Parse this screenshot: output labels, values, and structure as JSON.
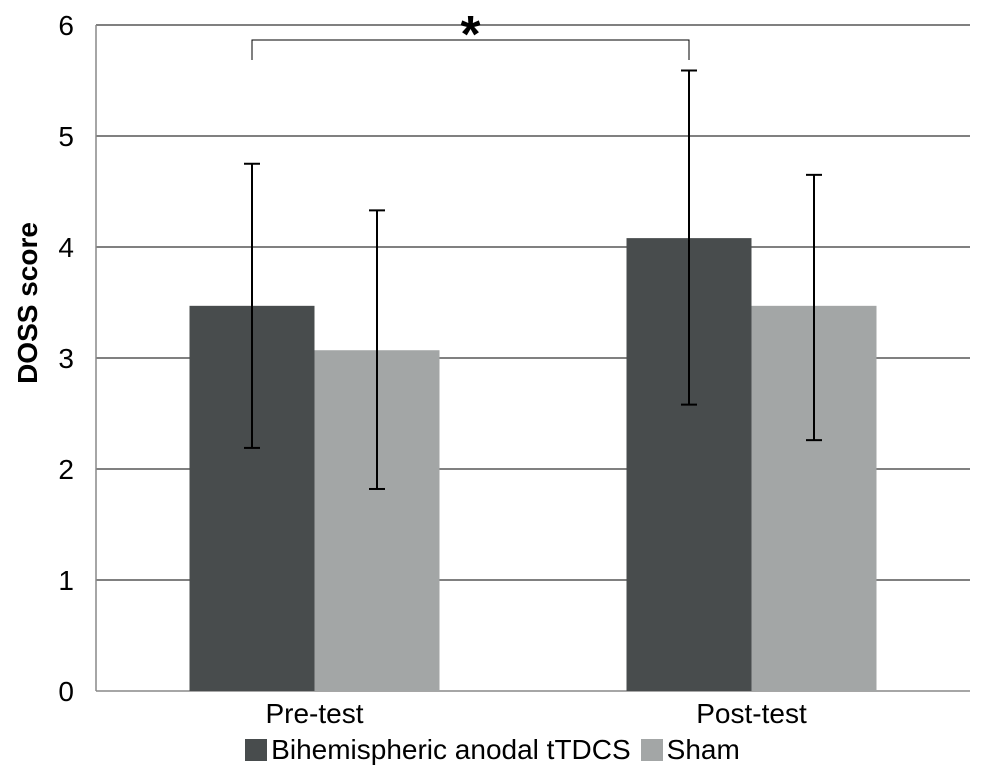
{
  "chart_data": {
    "type": "bar",
    "categories": [
      "Pre-test",
      "Post-test"
    ],
    "series": [
      {
        "name": "Bihemispheric anodal tTDCS",
        "values": [
          3.47,
          4.08
        ],
        "err_low": [
          2.19,
          2.58
        ],
        "err_high": [
          4.75,
          5.59
        ],
        "color": "#484c4d"
      },
      {
        "name": "Sham",
        "values": [
          3.07,
          3.47
        ],
        "err_low": [
          1.82,
          2.26
        ],
        "err_high": [
          4.33,
          4.65
        ],
        "color": "#a3a6a6"
      }
    ],
    "ylabel": "DOSS score",
    "xlabel": "",
    "ylim": [
      0,
      6
    ],
    "yticks": [
      "0",
      "1",
      "2",
      "3",
      "4",
      "5",
      "6"
    ],
    "grid": true,
    "legend_position": "bottom",
    "significance": {
      "label": "*",
      "from": "Pre-test",
      "to": "Post-test",
      "series": "Bihemispheric anodal tTDCS"
    }
  }
}
